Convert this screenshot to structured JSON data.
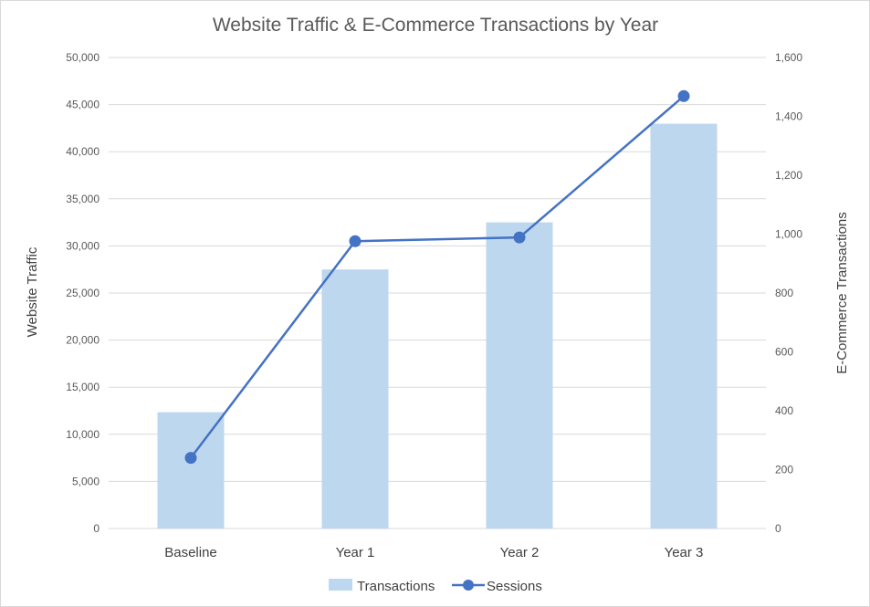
{
  "chart_data": {
    "type": "bar",
    "title": "Website Traffic & E-Commerce Transactions by Year",
    "categories": [
      "Baseline",
      "Year 1",
      "Year 2",
      "Year 3"
    ],
    "y_left": {
      "label": "Website Traffic",
      "range": [
        0,
        50000
      ],
      "ticks": [
        "0",
        "5,000",
        "10,000",
        "15,000",
        "20,000",
        "25,000",
        "30,000",
        "35,000",
        "40,000",
        "45,000",
        "50,000"
      ]
    },
    "y_right": {
      "label": "E-Commerce Transactions",
      "range": [
        0,
        1600
      ],
      "ticks": [
        "0",
        "200",
        "400",
        "600",
        "800",
        "1,000",
        "1,200",
        "1,400",
        "1,600"
      ]
    },
    "series": [
      {
        "name": "Transactions",
        "type": "bar",
        "axis": "right",
        "color": "#bdd7ee",
        "values": [
          395,
          880,
          1040,
          1375
        ]
      },
      {
        "name": "Sessions",
        "type": "line",
        "axis": "left",
        "color": "#4472c4",
        "values": [
          7500,
          30500,
          30900,
          45900
        ]
      }
    ],
    "grid": true,
    "legend": "bottom"
  }
}
